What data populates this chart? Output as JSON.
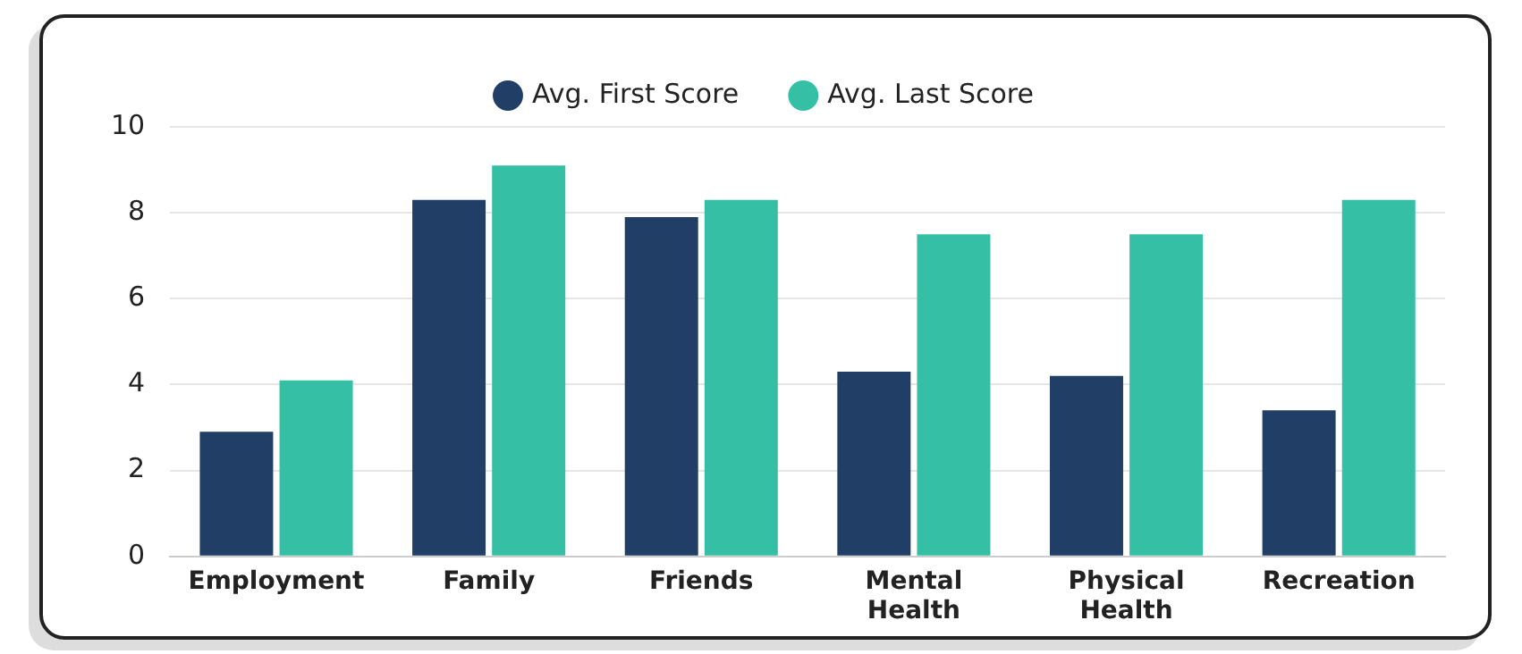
{
  "chart_data": {
    "type": "bar",
    "categories": [
      "Employment",
      "Family",
      "Friends",
      "Mental Health",
      "Physical Health",
      "Recreation"
    ],
    "series": [
      {
        "name": "Avg. First Score",
        "color": "#213f66",
        "values": [
          2.9,
          8.3,
          7.9,
          4.3,
          4.2,
          3.4
        ]
      },
      {
        "name": "Avg. Last Score",
        "color": "#35c0a6",
        "values": [
          4.1,
          9.1,
          8.3,
          7.5,
          7.5,
          8.3
        ]
      }
    ],
    "ylim": [
      0,
      10
    ],
    "yticks": [
      0,
      2,
      4,
      6,
      8,
      10
    ],
    "grid": "y",
    "legend": "top"
  }
}
